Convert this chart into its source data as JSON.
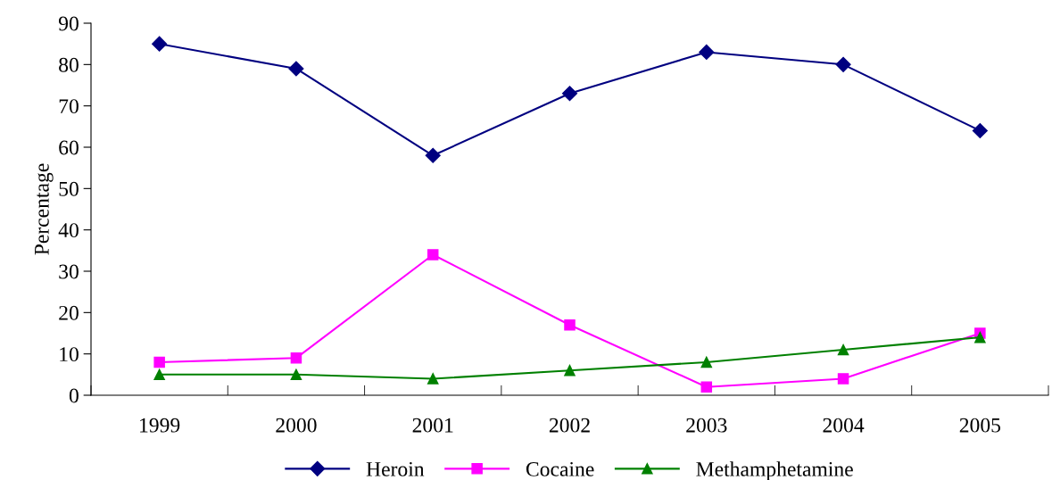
{
  "chart_data": {
    "type": "line",
    "ylabel": "Percentage",
    "categories": [
      "1999",
      "2000",
      "2001",
      "2002",
      "2003",
      "2004",
      "2005"
    ],
    "series": [
      {
        "name": "Heroin",
        "color": "#000080",
        "marker": "diamond",
        "values": [
          85,
          79,
          58,
          73,
          83,
          80,
          64
        ]
      },
      {
        "name": "Cocaine",
        "color": "#ff00ff",
        "marker": "square",
        "values": [
          8,
          9,
          34,
          17,
          2,
          4,
          15
        ]
      },
      {
        "name": "Methamphetamine",
        "color": "#008000",
        "marker": "triangle",
        "values": [
          5,
          5,
          4,
          6,
          8,
          11,
          14
        ]
      }
    ],
    "ylim": [
      0,
      90
    ],
    "yticks": [
      0,
      10,
      20,
      30,
      40,
      50,
      60,
      70,
      80,
      90
    ],
    "grid": false,
    "legend": "bottom",
    "line_style": "solid"
  }
}
